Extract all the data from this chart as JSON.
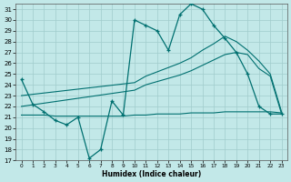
{
  "xlabel": "Humidex (Indice chaleur)",
  "xlim": [
    -0.5,
    23.5
  ],
  "ylim": [
    17,
    31.5
  ],
  "yticks": [
    17,
    18,
    19,
    20,
    21,
    22,
    23,
    24,
    25,
    26,
    27,
    28,
    29,
    30,
    31
  ],
  "xticks": [
    0,
    1,
    2,
    3,
    4,
    5,
    6,
    7,
    8,
    9,
    10,
    11,
    12,
    13,
    14,
    15,
    16,
    17,
    18,
    19,
    20,
    21,
    22,
    23
  ],
  "bg_color": "#c2e8e8",
  "grid_color": "#a0cccc",
  "line_color": "#007070",
  "curve1_x": [
    0,
    1,
    2,
    3,
    4,
    5,
    6,
    7,
    8,
    9,
    10,
    11,
    12,
    13,
    14,
    15,
    16,
    17,
    18,
    19,
    20,
    21,
    22,
    23
  ],
  "curve1_y": [
    24.5,
    22.2,
    21.5,
    20.7,
    20.3,
    21.0,
    17.2,
    18.0,
    22.5,
    21.2,
    30.0,
    29.5,
    29.0,
    27.2,
    30.5,
    31.5,
    31.0,
    29.5,
    28.3,
    27.0,
    25.0,
    22.0,
    21.3,
    21.3
  ],
  "curve2_x": [
    0,
    1,
    2,
    3,
    4,
    5,
    6,
    7,
    8,
    9,
    10,
    11,
    12,
    13,
    14,
    15,
    16,
    17,
    18,
    19,
    20,
    21,
    22,
    23
  ],
  "curve2_y": [
    21.2,
    21.2,
    21.2,
    21.1,
    21.1,
    21.1,
    21.1,
    21.1,
    21.1,
    21.1,
    21.2,
    21.2,
    21.3,
    21.3,
    21.3,
    21.4,
    21.4,
    21.4,
    21.5,
    21.5,
    21.5,
    21.5,
    21.5,
    21.4
  ],
  "curve3_x": [
    0,
    10,
    11,
    12,
    13,
    14,
    15,
    16,
    17,
    18,
    19,
    20,
    21,
    22,
    23
  ],
  "curve3_y": [
    22.0,
    23.5,
    24.0,
    24.3,
    24.6,
    24.9,
    25.3,
    25.8,
    26.3,
    26.8,
    27.0,
    26.8,
    25.5,
    24.8,
    21.3
  ],
  "curve4_x": [
    0,
    10,
    11,
    12,
    13,
    14,
    15,
    16,
    17,
    18,
    19,
    20,
    21,
    22,
    23
  ],
  "curve4_y": [
    23.0,
    24.2,
    24.8,
    25.2,
    25.6,
    26.0,
    26.5,
    27.2,
    27.8,
    28.5,
    28.0,
    27.2,
    26.2,
    25.0,
    21.5
  ]
}
